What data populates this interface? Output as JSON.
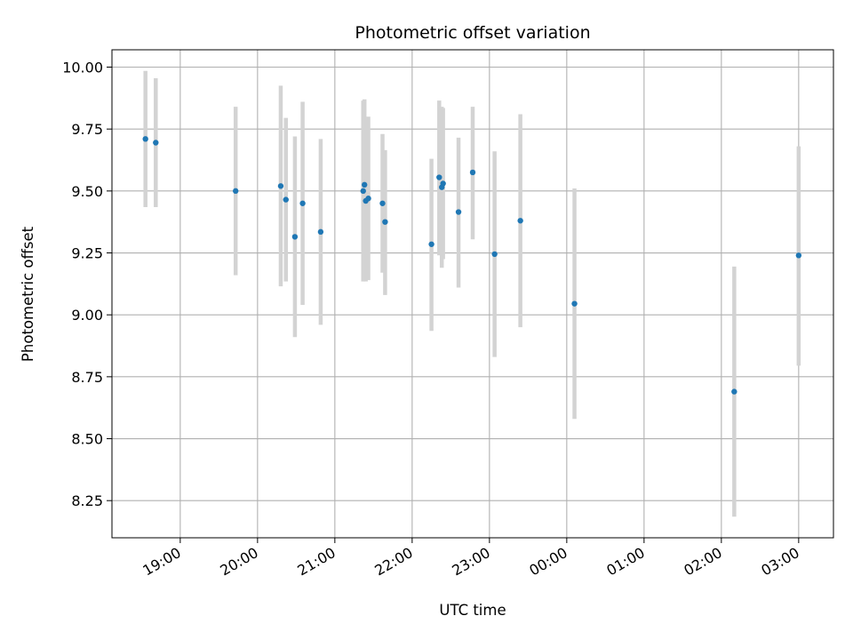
{
  "chart_data": {
    "type": "scatter",
    "title": "Photometric offset variation",
    "xlabel": "UTC time",
    "ylabel": "Photometric offset",
    "x_unit": "UTC time (HH:MM), spanning midnight",
    "x_ticks": [
      "19:00",
      "20:00",
      "21:00",
      "22:00",
      "23:00",
      "00:00",
      "01:00",
      "02:00",
      "03:00"
    ],
    "y_ticks": [
      "8.25",
      "8.50",
      "8.75",
      "9.00",
      "9.25",
      "9.50",
      "9.75",
      "10.00"
    ],
    "xlim": [
      "18:07",
      "03:27"
    ],
    "ylim": [
      8.1,
      10.07
    ],
    "grid": true,
    "colors": {
      "points": "#1f77b4",
      "error_bars": "#d3d3d3",
      "grid": "#b0b0b0",
      "frame": "#000000"
    },
    "points": [
      {
        "x": "18:33",
        "y": 9.71,
        "yerr_low": 9.435,
        "yerr_high": 9.985
      },
      {
        "x": "18:41",
        "y": 9.695,
        "yerr_low": 9.435,
        "yerr_high": 9.955
      },
      {
        "x": "19:43",
        "y": 9.5,
        "yerr_low": 9.16,
        "yerr_high": 9.84
      },
      {
        "x": "20:18",
        "y": 9.52,
        "yerr_low": 9.115,
        "yerr_high": 9.925
      },
      {
        "x": "20:22",
        "y": 9.465,
        "yerr_low": 9.135,
        "yerr_high": 9.795
      },
      {
        "x": "20:29",
        "y": 9.315,
        "yerr_low": 8.91,
        "yerr_high": 9.72
      },
      {
        "x": "20:35",
        "y": 9.45,
        "yerr_low": 9.04,
        "yerr_high": 9.86
      },
      {
        "x": "20:49",
        "y": 9.335,
        "yerr_low": 8.96,
        "yerr_high": 9.71
      },
      {
        "x": "21:22",
        "y": 9.5,
        "yerr_low": 9.135,
        "yerr_high": 9.865
      },
      {
        "x": "21:23",
        "y": 9.525,
        "yerr_low": 9.18,
        "yerr_high": 9.87
      },
      {
        "x": "21:24",
        "y": 9.46,
        "yerr_low": 9.135,
        "yerr_high": 9.785
      },
      {
        "x": "21:26",
        "y": 9.47,
        "yerr_low": 9.14,
        "yerr_high": 9.8
      },
      {
        "x": "21:37",
        "y": 9.45,
        "yerr_low": 9.17,
        "yerr_high": 9.73
      },
      {
        "x": "21:39",
        "y": 9.375,
        "yerr_low": 9.08,
        "yerr_high": 9.665
      },
      {
        "x": "22:15",
        "y": 9.285,
        "yerr_low": 8.935,
        "yerr_high": 9.63
      },
      {
        "x": "22:21",
        "y": 9.555,
        "yerr_low": 9.24,
        "yerr_high": 9.865
      },
      {
        "x": "22:23",
        "y": 9.515,
        "yerr_low": 9.19,
        "yerr_high": 9.84
      },
      {
        "x": "22:24",
        "y": 9.53,
        "yerr_low": 9.225,
        "yerr_high": 9.835
      },
      {
        "x": "22:36",
        "y": 9.415,
        "yerr_low": 9.11,
        "yerr_high": 9.715
      },
      {
        "x": "22:47",
        "y": 9.575,
        "yerr_low": 9.305,
        "yerr_high": 9.84
      },
      {
        "x": "23:04",
        "y": 9.245,
        "yerr_low": 8.83,
        "yerr_high": 9.66
      },
      {
        "x": "23:24",
        "y": 9.38,
        "yerr_low": 8.95,
        "yerr_high": 9.81
      },
      {
        "x": "00:06",
        "y": 9.045,
        "yerr_low": 8.58,
        "yerr_high": 9.51
      },
      {
        "x": "02:10",
        "y": 8.69,
        "yerr_low": 8.185,
        "yerr_high": 9.195
      },
      {
        "x": "03:00",
        "y": 9.24,
        "yerr_low": 8.795,
        "yerr_high": 9.68
      }
    ]
  }
}
